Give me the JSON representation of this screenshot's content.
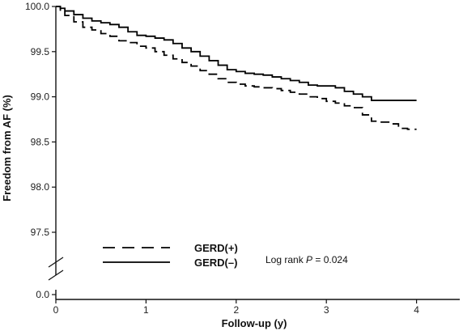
{
  "chart_data": {
    "type": "line",
    "title": "",
    "xlabel": "Follow-up (y)",
    "ylabel": "Freedom from AF (%)",
    "xlim": [
      0,
      4.5
    ],
    "ylim": [
      97.2,
      100.0
    ],
    "x_ticks": [
      0,
      1,
      2,
      3,
      4
    ],
    "x_tick_labels": [
      "0",
      "1",
      "2",
      "3",
      "4"
    ],
    "y_ticks": [
      97.5,
      98.0,
      98.5,
      99.0,
      99.5,
      100.0
    ],
    "y_tick_labels": [
      "97.5",
      "98.0",
      "98.5",
      "99.0",
      "99.5",
      "100.0"
    ],
    "y_break_label": "0.0",
    "grid": false,
    "legend_position": "bottom-left",
    "annotation": {
      "prefix": "Log rank ",
      "variable": "P",
      "suffix": " = 0.024"
    },
    "series": [
      {
        "name": "GERD(+)",
        "style": "dashed",
        "color": "#000000",
        "x": [
          0,
          0.05,
          0.1,
          0.2,
          0.3,
          0.4,
          0.5,
          0.6,
          0.7,
          0.8,
          0.9,
          1.0,
          1.1,
          1.2,
          1.3,
          1.4,
          1.5,
          1.6,
          1.7,
          1.8,
          1.9,
          2.0,
          2.1,
          2.2,
          2.3,
          2.4,
          2.5,
          2.6,
          2.7,
          2.8,
          2.9,
          3.0,
          3.1,
          3.2,
          3.3,
          3.4,
          3.5,
          3.6,
          3.7,
          3.8,
          3.9,
          4.0
        ],
        "y": [
          100.0,
          99.95,
          99.9,
          99.83,
          99.77,
          99.74,
          99.7,
          99.67,
          99.62,
          99.6,
          99.56,
          99.54,
          99.5,
          99.46,
          99.42,
          99.38,
          99.34,
          99.29,
          99.25,
          99.2,
          99.16,
          99.14,
          99.12,
          99.11,
          99.1,
          99.09,
          99.07,
          99.05,
          99.03,
          99.0,
          98.98,
          98.95,
          98.93,
          98.9,
          98.88,
          98.8,
          98.73,
          98.72,
          98.7,
          98.65,
          98.64,
          98.64
        ]
      },
      {
        "name": "GERD(–)",
        "style": "solid",
        "color": "#000000",
        "x": [
          0,
          0.05,
          0.1,
          0.2,
          0.3,
          0.4,
          0.5,
          0.6,
          0.7,
          0.8,
          0.9,
          1.0,
          1.1,
          1.2,
          1.3,
          1.4,
          1.5,
          1.6,
          1.7,
          1.8,
          1.9,
          2.0,
          2.1,
          2.2,
          2.3,
          2.4,
          2.5,
          2.6,
          2.7,
          2.8,
          2.9,
          3.0,
          3.1,
          3.2,
          3.3,
          3.4,
          3.5,
          3.6,
          3.7,
          3.8,
          3.9,
          4.0
        ],
        "y": [
          100.0,
          99.98,
          99.95,
          99.91,
          99.87,
          99.84,
          99.82,
          99.8,
          99.77,
          99.72,
          99.68,
          99.67,
          99.65,
          99.63,
          99.59,
          99.54,
          99.5,
          99.45,
          99.4,
          99.35,
          99.3,
          99.28,
          99.26,
          99.25,
          99.24,
          99.22,
          99.2,
          99.18,
          99.16,
          99.13,
          99.12,
          99.12,
          99.1,
          99.06,
          99.03,
          99.0,
          98.96,
          98.96,
          98.96,
          98.96,
          98.96,
          98.96
        ]
      }
    ]
  }
}
